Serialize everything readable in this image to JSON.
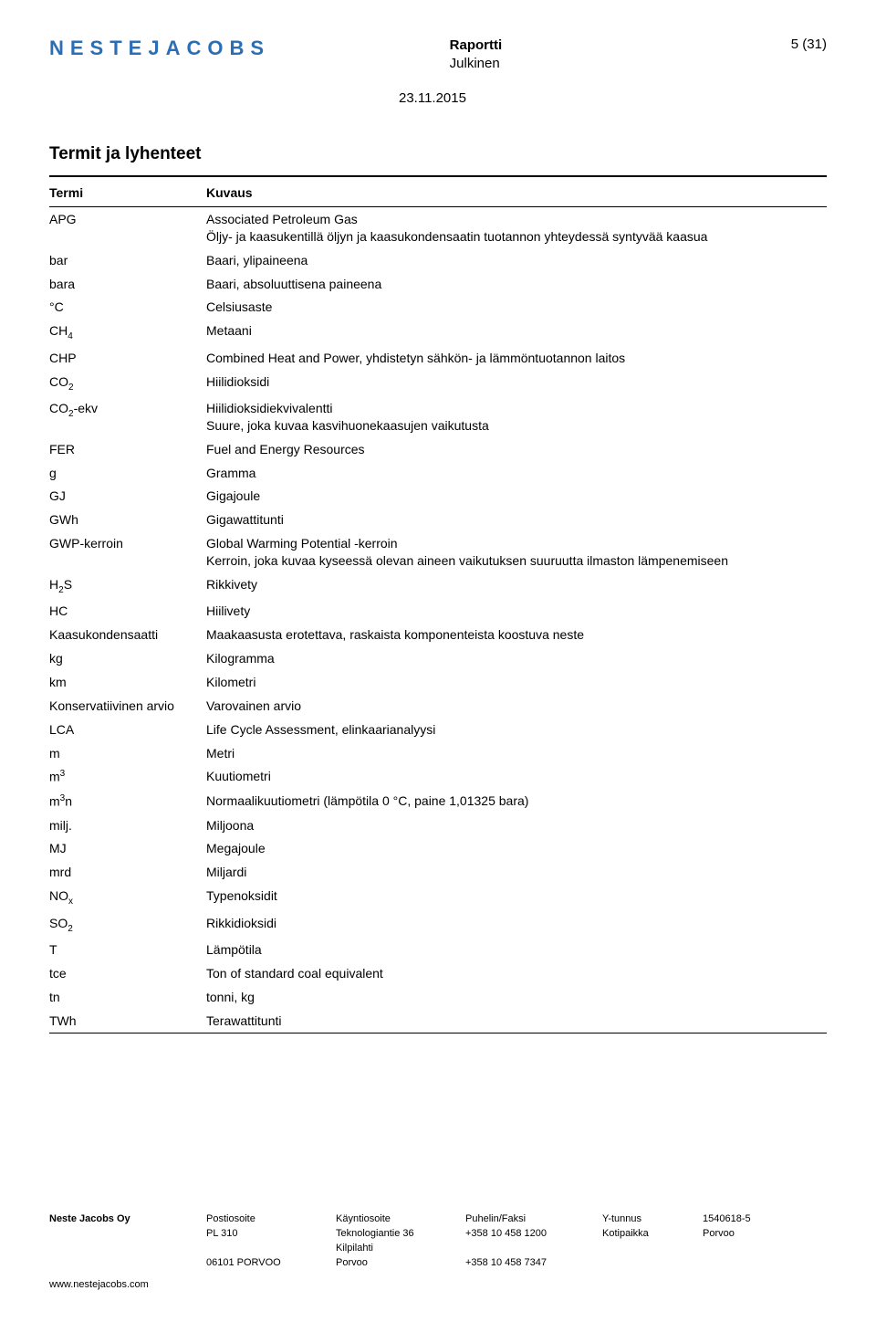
{
  "logo_text": "NESTEJACOBS",
  "header": {
    "doc_type": "Raportti",
    "classification": "Julkinen",
    "page_label": "5 (31)",
    "date": "23.11.2015"
  },
  "section_title": "Termit ja lyhenteet",
  "columns": {
    "term": "Termi",
    "desc": "Kuvaus"
  },
  "rows": [
    {
      "term_html": "APG",
      "desc": "Associated Petroleum Gas\nÖljy- ja kaasukentillä öljyn ja kaasukondensaatin tuotannon yhteydessä syntyvää kaasua"
    },
    {
      "term_html": "bar",
      "desc": "Baari, ylipaineena"
    },
    {
      "term_html": "bara",
      "desc": "Baari, absoluuttisena paineena"
    },
    {
      "term_html": "°C",
      "desc": "Celsiusaste"
    },
    {
      "term_html": "CH<span class=\"sub\">4</span>",
      "desc": "Metaani"
    },
    {
      "term_html": "CHP",
      "desc": "Combined Heat and Power, yhdistetyn sähkön- ja lämmöntuotannon laitos"
    },
    {
      "term_html": "CO<span class=\"sub\">2</span>",
      "desc": "Hiilidioksidi"
    },
    {
      "term_html": "CO<span class=\"sub\">2</span>-ekv",
      "desc": "Hiilidioksidiekvivalentti\nSuure, joka kuvaa kasvihuonekaasujen vaikutusta"
    },
    {
      "term_html": "FER",
      "desc": "Fuel and Energy Resources"
    },
    {
      "term_html": "g",
      "desc": "Gramma"
    },
    {
      "term_html": "GJ",
      "desc": "Gigajoule"
    },
    {
      "term_html": "GWh",
      "desc": "Gigawattitunti"
    },
    {
      "term_html": "GWP-kerroin",
      "desc": "Global Warming Potential -kerroin\nKerroin, joka kuvaa kyseessä olevan aineen vaikutuksen suuruutta ilmaston lämpenemiseen"
    },
    {
      "term_html": "H<span class=\"sub\">2</span>S",
      "desc": "Rikkivety"
    },
    {
      "term_html": "HC",
      "desc": "Hiilivety"
    },
    {
      "term_html": "Kaasukondensaatti",
      "desc": "Maakaasusta erotettava, raskaista komponenteista koostuva neste"
    },
    {
      "term_html": "kg",
      "desc": "Kilogramma"
    },
    {
      "term_html": "km",
      "desc": "Kilometri"
    },
    {
      "term_html": "Konservatiivinen arvio",
      "desc": "Varovainen arvio"
    },
    {
      "term_html": "LCA",
      "desc": "Life Cycle Assessment, elinkaarianalyysi"
    },
    {
      "term_html": "m",
      "desc": "Metri"
    },
    {
      "term_html": "m<span class=\"sup\">3</span>",
      "desc": "Kuutiometri"
    },
    {
      "term_html": "m<span class=\"sup\">3</span>n",
      "desc": "Normaalikuutiometri (lämpötila 0 °C, paine 1,01325 bara)"
    },
    {
      "term_html": "milj.",
      "desc": "Miljoona"
    },
    {
      "term_html": "MJ",
      "desc": "Megajoule"
    },
    {
      "term_html": "mrd",
      "desc": "Miljardi"
    },
    {
      "term_html": "NO<span class=\"sub\">x</span>",
      "desc": "Typenoksidit"
    },
    {
      "term_html": "SO<span class=\"sub\">2</span>",
      "desc": "Rikkidioksidi"
    },
    {
      "term_html": "T",
      "desc": "Lämpötila"
    },
    {
      "term_html": "tce",
      "desc": "Ton of standard coal equivalent"
    },
    {
      "term_html": "tn",
      "desc": "tonni, kg"
    },
    {
      "term_html": "TWh",
      "desc": "Terawattitunti"
    }
  ],
  "footer": {
    "company": "Neste Jacobs Oy",
    "url": "www.nestejacobs.com",
    "col2_head": "Postiosoite",
    "col2_l1": "PL 310",
    "col2_l3": "06101 PORVOO",
    "col3_head": "Käyntiosoite",
    "col3_l1": "Teknologiantie 36",
    "col3_l2": "Kilpilahti",
    "col3_l3": "Porvoo",
    "col4_head": "Puhelin/Faksi",
    "col4_l1": "+358 10 458 1200",
    "col4_l3": "+358 10 458 7347",
    "col5_head": "Y-tunnus",
    "col5_l1": "Kotipaikka",
    "col6_head": "1540618-5",
    "col6_l1": "Porvoo"
  }
}
